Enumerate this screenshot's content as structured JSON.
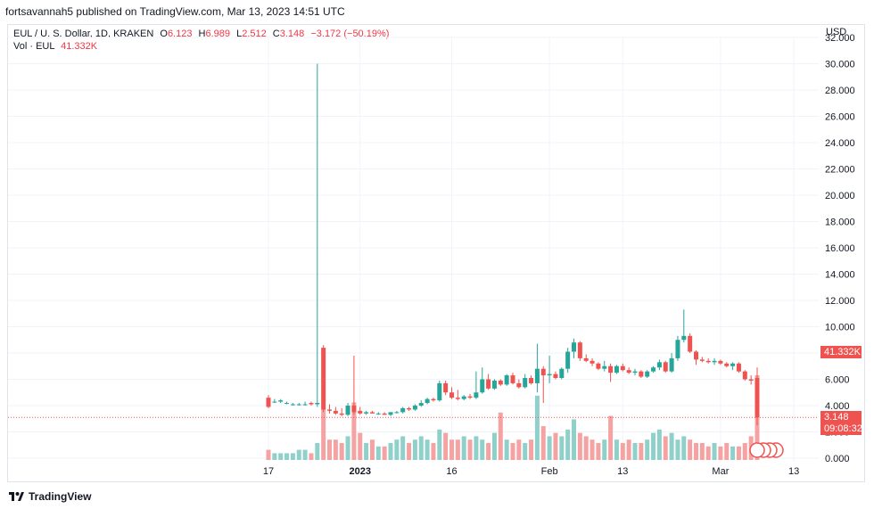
{
  "header": {
    "published": "fortsavannah5 published on TradingView.com, Mar 13, 2023 14:51 UTC"
  },
  "legend": {
    "symbol": "EUL / U. S. Dollar, 1D, KRAKEN",
    "o_label": "O",
    "o_value": "6.123",
    "h_label": "H",
    "h_value": "6.989",
    "l_label": "L",
    "l_value": "2.512",
    "c_label": "C",
    "c_value": "3.148",
    "change": "−3.172 (−50.19%)",
    "vol_label": "Vol · EUL",
    "vol_value": "41.332K"
  },
  "axis": {
    "currency": "USD"
  },
  "tags": {
    "volume": "41.332K",
    "price": "3.148",
    "countdown": "09:08:32"
  },
  "footer": {
    "brand": "TradingView"
  },
  "colors": {
    "up": "#26a69a",
    "down": "#ef5350",
    "vol_up": "#8fd1ca",
    "vol_down": "#f5a3a2",
    "grid": "#f0f3fa"
  },
  "chart_data": {
    "type": "candlestick",
    "title": "EUL / U. S. Dollar, 1D, KRAKEN",
    "ylim": [
      0,
      32
    ],
    "y_ticks": [
      "0.000",
      "2.000",
      "4.000",
      "6.000",
      "8.000",
      "10.000",
      "12.000",
      "14.000",
      "16.000",
      "18.000",
      "20.000",
      "22.000",
      "24.000",
      "26.000",
      "28.000",
      "30.000",
      "32.000"
    ],
    "x_ticks": [
      "17",
      "2023",
      "16",
      "Feb",
      "13",
      "Mar",
      "13"
    ],
    "start_date": "2022-12-17",
    "candles": [
      [
        4.6,
        4.8,
        3.8,
        3.9
      ],
      [
        4.3,
        4.5,
        4.2,
        4.3
      ],
      [
        4.3,
        4.5,
        4.2,
        4.4
      ],
      [
        4.2,
        4.3,
        4.1,
        4.2
      ],
      [
        4.1,
        4.2,
        4.0,
        4.1
      ],
      [
        4.1,
        4.2,
        4.0,
        4.1
      ],
      [
        4.1,
        4.3,
        4.0,
        4.1
      ],
      [
        4.2,
        4.3,
        4.0,
        4.1
      ],
      [
        4.1,
        30.0,
        3.9,
        4.2
      ],
      [
        8.4,
        8.6,
        3.5,
        3.7
      ],
      [
        3.7,
        4.1,
        3.4,
        3.6
      ],
      [
        3.6,
        3.9,
        3.3,
        3.4
      ],
      [
        3.4,
        3.8,
        3.2,
        3.3
      ],
      [
        3.3,
        4.2,
        3.2,
        4.0
      ],
      [
        4.0,
        7.8,
        3.3,
        3.5
      ],
      [
        3.6,
        3.9,
        3.3,
        3.4
      ],
      [
        3.4,
        3.6,
        3.3,
        3.5
      ],
      [
        3.5,
        3.6,
        3.4,
        3.4
      ],
      [
        3.4,
        3.5,
        3.3,
        3.4
      ],
      [
        3.4,
        3.5,
        3.3,
        3.3
      ],
      [
        3.3,
        3.5,
        3.2,
        3.5
      ],
      [
        3.5,
        3.6,
        3.4,
        3.5
      ],
      [
        3.5,
        3.9,
        3.4,
        3.8
      ],
      [
        3.8,
        3.9,
        3.6,
        3.7
      ],
      [
        3.7,
        4.1,
        3.6,
        4.0
      ],
      [
        4.0,
        4.4,
        3.9,
        4.2
      ],
      [
        4.2,
        4.6,
        4.1,
        4.5
      ],
      [
        4.5,
        4.6,
        4.3,
        4.4
      ],
      [
        4.4,
        5.9,
        4.3,
        5.7
      ],
      [
        5.7,
        5.9,
        4.8,
        5.0
      ],
      [
        5.0,
        5.4,
        4.5,
        4.6
      ],
      [
        4.6,
        5.2,
        4.4,
        4.5
      ],
      [
        4.5,
        4.8,
        4.4,
        4.7
      ],
      [
        4.7,
        4.9,
        4.5,
        4.6
      ],
      [
        4.6,
        6.6,
        4.5,
        5.0
      ],
      [
        5.0,
        6.9,
        4.9,
        6.0
      ],
      [
        6.0,
        6.4,
        5.2,
        5.3
      ],
      [
        5.3,
        6.0,
        5.2,
        5.9
      ],
      [
        5.9,
        6.0,
        5.5,
        5.6
      ],
      [
        5.6,
        6.4,
        5.5,
        6.3
      ],
      [
        6.3,
        6.5,
        5.6,
        5.7
      ],
      [
        5.7,
        6.0,
        5.3,
        5.4
      ],
      [
        5.4,
        6.4,
        5.3,
        6.1
      ],
      [
        6.1,
        6.3,
        5.6,
        5.7
      ],
      [
        5.7,
        8.7,
        5.0,
        6.8
      ],
      [
        6.8,
        7.0,
        4.2,
        6.3
      ],
      [
        6.3,
        7.8,
        5.7,
        6.4
      ],
      [
        6.4,
        6.6,
        6.0,
        6.1
      ],
      [
        6.1,
        6.9,
        6.0,
        6.8
      ],
      [
        6.8,
        8.4,
        6.5,
        8.1
      ],
      [
        8.1,
        9.1,
        7.6,
        8.8
      ],
      [
        8.8,
        8.9,
        7.4,
        7.6
      ],
      [
        7.6,
        7.9,
        7.3,
        7.4
      ],
      [
        7.4,
        7.6,
        7.0,
        7.2
      ],
      [
        7.2,
        7.3,
        6.7,
        6.8
      ],
      [
        6.8,
        7.4,
        6.6,
        7.0
      ],
      [
        7.0,
        7.2,
        5.8,
        6.5
      ],
      [
        6.5,
        7.1,
        6.4,
        7.0
      ],
      [
        7.0,
        7.2,
        6.6,
        6.7
      ],
      [
        6.7,
        6.9,
        6.4,
        6.5
      ],
      [
        6.5,
        6.8,
        6.3,
        6.6
      ],
      [
        6.6,
        6.7,
        6.1,
        6.2
      ],
      [
        6.2,
        6.7,
        6.1,
        6.6
      ],
      [
        6.6,
        7.0,
        6.5,
        6.9
      ],
      [
        6.9,
        7.5,
        6.7,
        7.3
      ],
      [
        7.3,
        7.4,
        6.5,
        6.6
      ],
      [
        6.6,
        8.0,
        6.5,
        7.6
      ],
      [
        7.6,
        9.3,
        7.4,
        9.0
      ],
      [
        9.0,
        11.3,
        8.8,
        9.3
      ],
      [
        9.3,
        9.5,
        8.0,
        8.1
      ],
      [
        8.1,
        8.2,
        7.1,
        7.5
      ],
      [
        7.5,
        7.7,
        7.3,
        7.4
      ],
      [
        7.4,
        7.6,
        7.2,
        7.3
      ],
      [
        7.3,
        7.6,
        7.1,
        7.4
      ],
      [
        7.4,
        7.5,
        7.1,
        7.2
      ],
      [
        7.2,
        7.3,
        6.9,
        7.0
      ],
      [
        7.0,
        7.3,
        6.7,
        7.2
      ],
      [
        7.2,
        7.3,
        6.5,
        6.6
      ],
      [
        6.6,
        6.7,
        5.9,
        6.0
      ],
      [
        6.0,
        6.3,
        5.6,
        5.9
      ],
      [
        6.1,
        6.9,
        2.5,
        3.1
      ]
    ],
    "volume": [
      0.03,
      0.02,
      0.02,
      0.02,
      0.02,
      0.03,
      0.03,
      0.02,
      0.05,
      0.15,
      0.06,
      0.06,
      0.05,
      0.07,
      0.17,
      0.08,
      0.05,
      0.06,
      0.04,
      0.04,
      0.05,
      0.06,
      0.07,
      0.05,
      0.06,
      0.07,
      0.06,
      0.05,
      0.09,
      0.08,
      0.06,
      0.06,
      0.07,
      0.06,
      0.07,
      0.06,
      0.05,
      0.08,
      0.14,
      0.06,
      0.05,
      0.06,
      0.05,
      0.06,
      0.19,
      0.1,
      0.07,
      0.08,
      0.07,
      0.09,
      0.12,
      0.08,
      0.07,
      0.06,
      0.05,
      0.06,
      0.13,
      0.06,
      0.05,
      0.06,
      0.05,
      0.05,
      0.06,
      0.08,
      0.09,
      0.07,
      0.08,
      0.06,
      0.07,
      0.06,
      0.05,
      0.05,
      0.04,
      0.05,
      0.04,
      0.05,
      0.04,
      0.04,
      0.05,
      0.07,
      0.25
    ]
  }
}
